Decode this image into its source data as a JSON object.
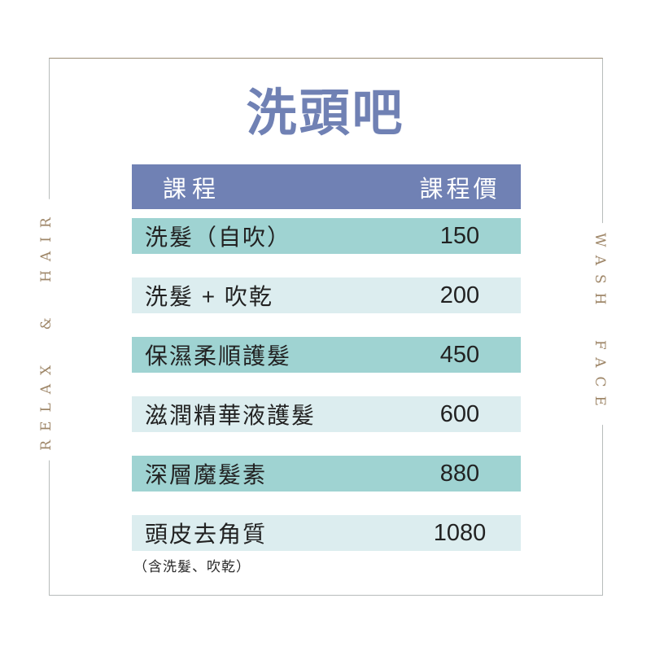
{
  "title": "洗頭吧",
  "side_labels": {
    "left": "RELAX & HAIR",
    "right": "WASH FACE"
  },
  "table": {
    "header": {
      "course": "課程",
      "price": "課程價"
    },
    "rows": [
      {
        "course": "洗髮（自吹）",
        "price": "150"
      },
      {
        "course": "洗髮 + 吹乾",
        "price": "200"
      },
      {
        "course": "保濕柔順護髮",
        "price": "450"
      },
      {
        "course": "滋潤精華液護髮",
        "price": "600"
      },
      {
        "course": "深層魔髮素",
        "price": "880"
      },
      {
        "course": "頭皮去角質",
        "price": "1080"
      }
    ],
    "note": "（含洗髮、吹乾）"
  },
  "colors": {
    "header_bg": "#7081b4",
    "row_teal": "#9fd3d2",
    "row_light": "#dcedef",
    "title_text": "#7081b4",
    "side_text": "#9f8769",
    "frame_border": "#b7bcbb",
    "frame_border_top": "#9c8d75",
    "body_text": "#222222"
  }
}
